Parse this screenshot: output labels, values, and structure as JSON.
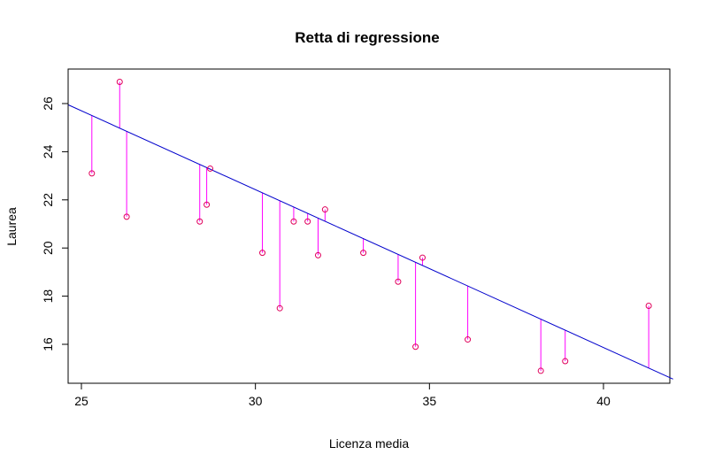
{
  "chart_data": {
    "type": "scatter",
    "title": "Retta di regressione",
    "xlabel": "Licenza media",
    "ylabel": "Laurea",
    "xlim": [
      24.5,
      42
    ],
    "ylim": [
      14.5,
      27.5
    ],
    "x_ticks": [
      25,
      30,
      35,
      40
    ],
    "y_ticks": [
      16,
      18,
      20,
      22,
      24,
      26
    ],
    "regression_line": {
      "intercept": 42.09,
      "slope": -0.6556
    },
    "points": [
      {
        "x": 25.3,
        "y": 23.1
      },
      {
        "x": 26.1,
        "y": 26.9
      },
      {
        "x": 26.3,
        "y": 21.3
      },
      {
        "x": 28.4,
        "y": 21.1
      },
      {
        "x": 28.6,
        "y": 21.8
      },
      {
        "x": 28.7,
        "y": 23.3
      },
      {
        "x": 30.2,
        "y": 19.8
      },
      {
        "x": 30.7,
        "y": 17.5
      },
      {
        "x": 31.1,
        "y": 21.1
      },
      {
        "x": 31.5,
        "y": 21.1
      },
      {
        "x": 31.8,
        "y": 19.7
      },
      {
        "x": 32.0,
        "y": 21.6
      },
      {
        "x": 33.1,
        "y": 19.8
      },
      {
        "x": 34.1,
        "y": 18.6
      },
      {
        "x": 34.6,
        "y": 15.9
      },
      {
        "x": 34.8,
        "y": 19.6
      },
      {
        "x": 36.1,
        "y": 16.2
      },
      {
        "x": 38.2,
        "y": 14.9
      },
      {
        "x": 38.9,
        "y": 15.3
      },
      {
        "x": 41.3,
        "y": 17.6
      }
    ],
    "colors": {
      "points": "#e0005a",
      "residuals": "#ff00ff",
      "regression": "#0000cc",
      "frame": "#000000"
    },
    "grid": false
  }
}
